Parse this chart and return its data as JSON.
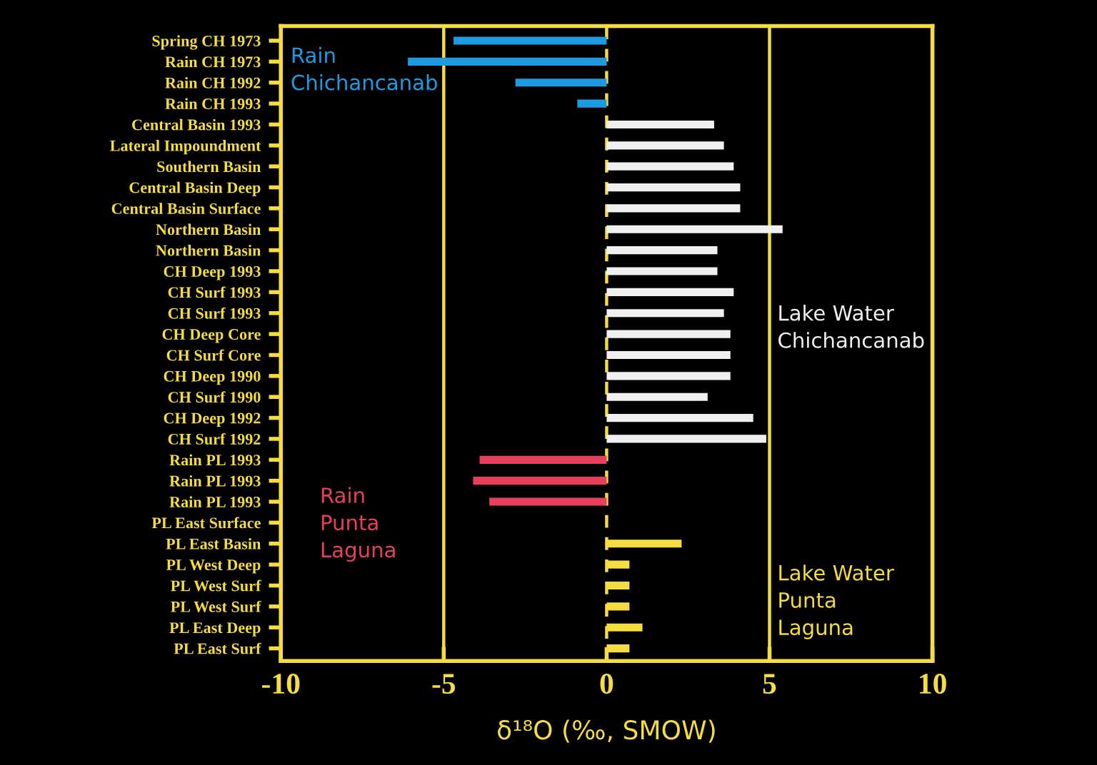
{
  "chart_data": {
    "type": "bar",
    "orientation": "horizontal",
    "categories": [
      "Spring CH 1973",
      "Rain CH 1973",
      "Rain CH 1992",
      "Rain CH 1993",
      "Central Basin 1993",
      "Lateral Impoundment",
      "Southern Basin",
      "Central Basin Deep",
      "Central Basin Surface",
      "Northern Basin",
      "Northern Basin",
      "CH Deep 1993",
      "CH Surf 1993",
      "CH Surf 1993",
      "CH Deep Core",
      "CH Surf Core",
      "CH Deep 1990",
      "CH Surf 1990",
      "CH Deep 1992",
      "CH Surf 1992",
      "Rain PL 1993",
      "Rain PL 1993",
      "Rain PL 1993",
      "PL East Surface",
      "PL East Basin",
      "PL West Deep",
      "PL West Surf",
      "PL West Surf",
      "PL East Deep",
      "PL East Surf"
    ],
    "series": [
      {
        "name": "Rain\nChichancanab",
        "color": "#1e9be0",
        "values": [
          -4.7,
          -6.1,
          -2.8,
          -0.9,
          null,
          null,
          null,
          null,
          null,
          null,
          null,
          null,
          null,
          null,
          null,
          null,
          null,
          null,
          null,
          null,
          null,
          null,
          null,
          null,
          null,
          null,
          null,
          null,
          null,
          null
        ]
      },
      {
        "name": "Lake Water\nChichancanab",
        "color": "#f0f0f0",
        "values": [
          null,
          null,
          null,
          null,
          3.3,
          3.6,
          3.9,
          4.1,
          4.1,
          5.4,
          3.4,
          3.4,
          3.9,
          3.6,
          3.8,
          3.8,
          3.8,
          3.1,
          4.5,
          4.9,
          null,
          null,
          null,
          null,
          null,
          null,
          null,
          null,
          null,
          null
        ]
      },
      {
        "name": "Rain\nPunta\nLaguna",
        "color": "#e8405a",
        "values": [
          null,
          null,
          null,
          null,
          null,
          null,
          null,
          null,
          null,
          null,
          null,
          null,
          null,
          null,
          null,
          null,
          null,
          null,
          null,
          null,
          -3.9,
          -4.1,
          -3.6,
          null,
          null,
          null,
          null,
          null,
          null,
          null
        ]
      },
      {
        "name": "Lake Water\nPunta\nLaguna",
        "color": "#f5dc40",
        "values": [
          null,
          null,
          null,
          null,
          null,
          null,
          null,
          null,
          null,
          null,
          null,
          null,
          null,
          null,
          null,
          null,
          null,
          null,
          null,
          null,
          null,
          null,
          null,
          null,
          2.3,
          0.7,
          0.7,
          0.7,
          1.1,
          0.7
        ]
      }
    ],
    "xlabel": "δ¹⁸O (‰, SMOW)",
    "xlim": [
      -10,
      10
    ],
    "xticks": [
      {
        "value": -10,
        "label": "-10"
      },
      {
        "value": -5,
        "label": "-5"
      },
      0,
      5,
      10
    ],
    "ref_lines": [
      {
        "axis": "x",
        "value": -5,
        "color": "#f5dc40",
        "line_style": "solid"
      },
      {
        "axis": "x",
        "value": 0,
        "color": "#f5dc40",
        "line_style": "dashed"
      },
      {
        "axis": "x",
        "value": 5,
        "color": "#f5dc40",
        "line_style": "solid"
      }
    ]
  }
}
